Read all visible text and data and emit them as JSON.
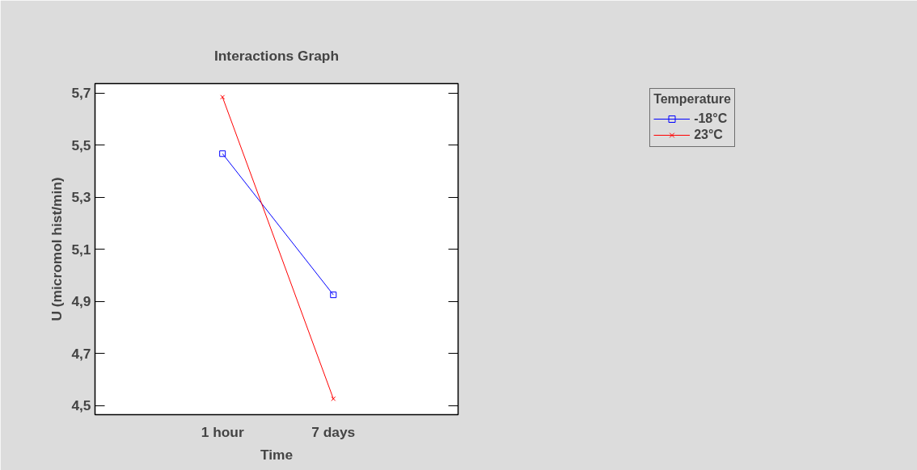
{
  "chart_data": {
    "type": "line",
    "title": "Interactions Graph",
    "xlabel": "Time",
    "ylabel": "U (micromol hist/min)",
    "legend_title": "Temperature",
    "categories": [
      "1 hour",
      "7 days"
    ],
    "series": [
      {
        "name": "-18°C",
        "color": "#0000ff",
        "marker": "square",
        "values": [
          5.467,
          4.925
        ]
      },
      {
        "name": "23°C",
        "color": "#ff0000",
        "marker": "cross",
        "values": [
          5.684,
          4.526
        ]
      }
    ],
    "ylim": [
      4.465,
      5.736
    ],
    "yticks": [
      {
        "value": 4.5,
        "label": "4,5"
      },
      {
        "value": 4.7,
        "label": "4,7"
      },
      {
        "value": 4.9,
        "label": "4,9"
      },
      {
        "value": 5.1,
        "label": "5,1"
      },
      {
        "value": 5.3,
        "label": "5,3"
      },
      {
        "value": 5.5,
        "label": "5,5"
      },
      {
        "value": 5.7,
        "label": "5,7"
      }
    ],
    "grid": false,
    "legend": "top right",
    "line_style": "solid"
  }
}
